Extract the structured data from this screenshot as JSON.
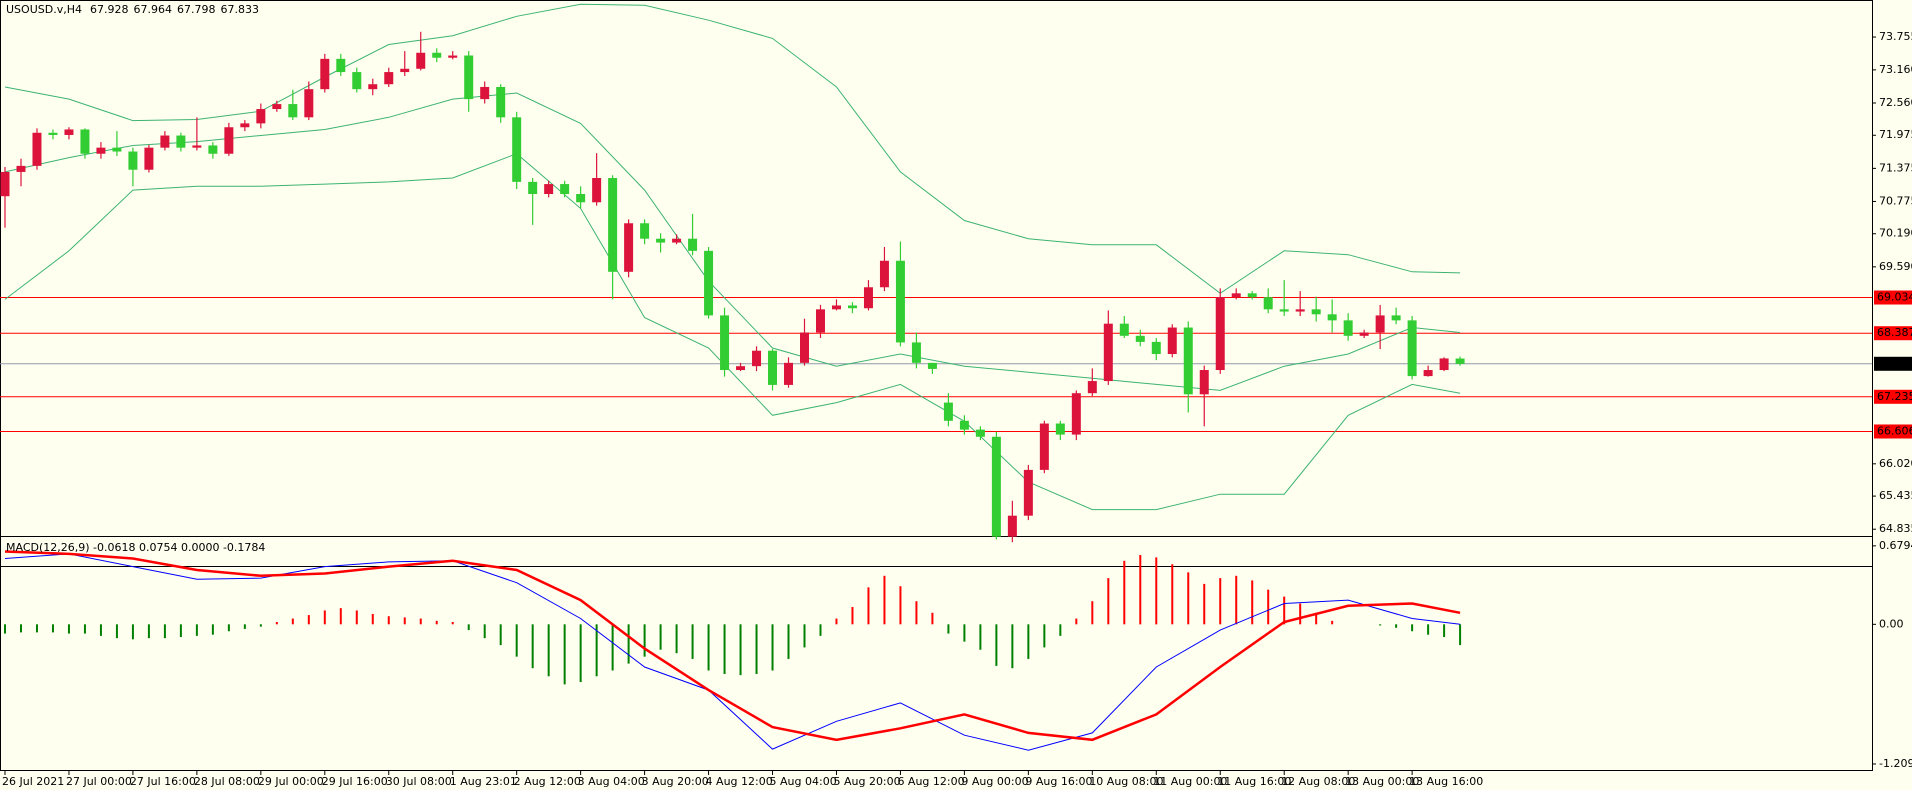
{
  "chart_data": {
    "type": "candlestick",
    "title": "USOUSD.v,H4",
    "candles": {
      "open": [
        70.87,
        71.31,
        71.42,
        72.02,
        71.98,
        72.08,
        71.64,
        71.75,
        71.68,
        71.35,
        71.75,
        71.97,
        71.75,
        71.79,
        71.64,
        72.12,
        72.19,
        72.45,
        72.54,
        72.3,
        72.81,
        73.36,
        73.12,
        72.81,
        72.9,
        73.12,
        73.18,
        73.47,
        73.38,
        73.42,
        72.63,
        72.85,
        72.3,
        71.13,
        70.91,
        71.09,
        70.91,
        70.76,
        71.2,
        69.5,
        70.38,
        70.1,
        70.03,
        70.1,
        69.88,
        68.71,
        67.72,
        67.79,
        68.07,
        67.45,
        67.85,
        68.4,
        68.82,
        68.89,
        68.84,
        69.22,
        69.7,
        68.22,
        67.85,
        67.13,
        66.8,
        66.64,
        66.51,
        64.7,
        65.08,
        65.91,
        66.75,
        66.55,
        67.3,
        67.52,
        68.56,
        68.34,
        68.23,
        68.01,
        68.49,
        67.28,
        67.72,
        69.04,
        69.11,
        69.04,
        68.82,
        68.78,
        68.82,
        68.73,
        68.62,
        68.34,
        68.4,
        68.71,
        68.62,
        67.61,
        67.72,
        67.928
      ],
      "high": [
        71.4,
        71.55,
        72.1,
        72.08,
        72.12,
        72.1,
        71.85,
        72.05,
        71.75,
        71.8,
        72.05,
        72.02,
        72.3,
        71.85,
        72.2,
        72.25,
        72.55,
        72.6,
        72.8,
        72.95,
        73.45,
        73.45,
        73.2,
        73.0,
        73.2,
        73.5,
        73.85,
        73.55,
        73.5,
        73.5,
        72.95,
        72.9,
        72.4,
        71.2,
        71.15,
        71.15,
        71.05,
        71.65,
        71.25,
        70.45,
        70.45,
        70.2,
        70.18,
        70.55,
        69.95,
        68.85,
        67.85,
        68.15,
        68.1,
        67.95,
        68.65,
        68.9,
        69.0,
        68.95,
        69.35,
        69.95,
        70.05,
        68.4,
        67.85,
        67.3,
        66.9,
        66.7,
        66.6,
        65.35,
        66.0,
        66.8,
        66.8,
        67.35,
        67.75,
        68.8,
        68.7,
        68.45,
        68.3,
        68.55,
        68.6,
        67.8,
        69.2,
        69.2,
        69.15,
        69.2,
        69.35,
        69.15,
        69.05,
        69.0,
        68.75,
        68.45,
        68.9,
        68.85,
        68.7,
        67.8,
        67.95,
        67.964
      ],
      "low": [
        70.3,
        71.05,
        71.35,
        71.9,
        71.9,
        71.55,
        71.55,
        71.6,
        71.05,
        71.3,
        71.7,
        71.68,
        71.7,
        71.55,
        71.6,
        72.05,
        72.1,
        72.4,
        72.25,
        72.25,
        72.75,
        73.05,
        72.75,
        72.7,
        72.85,
        73.05,
        73.15,
        73.3,
        73.35,
        72.4,
        72.55,
        72.2,
        71.0,
        70.35,
        70.85,
        70.85,
        70.65,
        70.7,
        69.0,
        69.4,
        70.0,
        69.85,
        70.0,
        69.8,
        68.65,
        67.6,
        67.7,
        67.7,
        67.35,
        67.4,
        67.8,
        68.3,
        68.8,
        68.75,
        68.8,
        69.15,
        68.15,
        67.75,
        67.65,
        66.7,
        66.55,
        66.45,
        64.65,
        64.6,
        65.0,
        65.85,
        66.45,
        66.45,
        67.25,
        67.45,
        68.3,
        68.15,
        67.9,
        67.95,
        66.95,
        66.7,
        67.65,
        69.0,
        69.0,
        68.75,
        68.7,
        68.7,
        68.6,
        68.4,
        68.25,
        68.3,
        68.1,
        68.55,
        67.55,
        67.6,
        67.7,
        67.798
      ],
      "close": [
        71.31,
        71.42,
        72.02,
        71.98,
        72.08,
        71.64,
        71.75,
        71.68,
        71.35,
        71.75,
        71.97,
        71.75,
        71.79,
        71.64,
        72.12,
        72.19,
        72.45,
        72.54,
        72.3,
        72.81,
        73.36,
        73.12,
        72.81,
        72.9,
        73.12,
        73.18,
        73.47,
        73.38,
        73.42,
        72.63,
        72.85,
        72.3,
        71.13,
        70.91,
        71.09,
        70.91,
        70.76,
        71.2,
        69.5,
        70.38,
        70.1,
        70.03,
        70.1,
        69.88,
        68.71,
        67.72,
        67.79,
        68.07,
        67.45,
        67.85,
        68.4,
        68.82,
        68.89,
        68.84,
        69.22,
        69.7,
        68.22,
        67.85,
        67.74,
        66.8,
        66.64,
        66.51,
        64.7,
        65.08,
        65.91,
        66.75,
        66.55,
        67.3,
        67.52,
        68.56,
        68.34,
        68.23,
        68.01,
        68.49,
        67.28,
        67.72,
        69.04,
        69.11,
        69.04,
        68.82,
        68.78,
        68.82,
        68.73,
        68.62,
        68.34,
        68.4,
        68.71,
        68.62,
        67.61,
        67.72,
        67.93,
        67.833
      ]
    },
    "time_labels": [
      "26 Jul 2021",
      "27 Jul 00:00",
      "27 Jul 16:00",
      "28 Jul 08:00",
      "29 Jul 00:00",
      "29 Jul 16:00",
      "30 Jul 08:00",
      "1 Aug 23:01",
      "2 Aug 12:00",
      "3 Aug 04:00",
      "3 Aug 20:00",
      "4 Aug 12:00",
      "5 Aug 04:00",
      "5 Aug 20:00",
      "6 Aug 12:00",
      "9 Aug 00:00",
      "9 Aug 16:00",
      "10 Aug 08:00",
      "11 Aug 00:00",
      "11 Aug 16:00",
      "12 Aug 08:00",
      "13 Aug 00:00",
      "13 Aug 16:00"
    ],
    "line_x": [
      0,
      4,
      8,
      12,
      16,
      20,
      24,
      28,
      32,
      36,
      40,
      44,
      48,
      52,
      56,
      60,
      64,
      68,
      72,
      76,
      80,
      84,
      88,
      91
    ],
    "bands": {
      "upper": [
        72.85,
        72.63,
        72.24,
        72.26,
        72.41,
        73.03,
        73.62,
        73.78,
        74.13,
        74.35,
        74.33,
        74.06,
        73.73,
        72.85,
        71.31,
        70.43,
        70.1,
        69.99,
        69.99,
        69.11,
        69.88,
        69.81,
        69.5,
        69.48
      ],
      "middle": [
        71.31,
        71.57,
        71.79,
        71.86,
        71.97,
        72.08,
        72.3,
        72.63,
        72.74,
        72.19,
        70.98,
        69.33,
        68.12,
        67.79,
        68.01,
        67.79,
        67.68,
        67.57,
        67.46,
        67.35,
        67.79,
        68.01,
        68.49,
        68.4
      ],
      "lower": [
        69.0,
        69.88,
        70.98,
        71.05,
        71.05,
        71.09,
        71.13,
        71.2,
        71.64,
        70.65,
        68.67,
        68.12,
        66.9,
        67.13,
        67.46,
        66.79,
        65.69,
        65.19,
        65.19,
        65.47,
        65.47,
        66.9,
        67.46,
        67.3
      ]
    },
    "levels": [
      69.034,
      68.387,
      67.235,
      66.606
    ],
    "bid": 67.833,
    "ylim": [
      64.15,
      74.39
    ],
    "yticks": [
      73.755,
      {
        "value": 73.16,
        "label": "73.160"
      },
      {
        "value": 72.56,
        "label": "72.560"
      },
      71.975,
      71.375,
      70.775,
      {
        "value": 70.19,
        "label": "70.190"
      },
      {
        "value": 69.59,
        "label": "69.590"
      },
      {
        "value": 66.02,
        "label": "66.020"
      },
      65.435,
      64.835
    ],
    "macd": {
      "title": "MACD(12,26,9) -0.0618 0.0754 0.0000 -0.1784",
      "histogram": [
        -0.08,
        -0.07,
        -0.07,
        -0.07,
        -0.08,
        -0.08,
        -0.1,
        -0.12,
        -0.13,
        -0.12,
        -0.12,
        -0.11,
        -0.1,
        -0.09,
        -0.06,
        -0.04,
        -0.02,
        0.02,
        0.05,
        0.08,
        0.12,
        0.14,
        0.12,
        0.09,
        0.07,
        0.06,
        0.05,
        0.03,
        0.02,
        -0.05,
        -0.12,
        -0.18,
        -0.28,
        -0.38,
        -0.45,
        -0.52,
        -0.5,
        -0.45,
        -0.4,
        -0.34,
        -0.28,
        -0.22,
        -0.25,
        -0.3,
        -0.4,
        -0.43,
        -0.44,
        -0.43,
        -0.4,
        -0.3,
        -0.2,
        -0.1,
        0.05,
        0.15,
        0.32,
        0.42,
        0.33,
        0.2,
        0.1,
        -0.08,
        -0.15,
        -0.22,
        -0.36,
        -0.38,
        -0.3,
        -0.2,
        -0.1,
        0.05,
        0.2,
        0.4,
        0.55,
        0.6,
        0.58,
        0.52,
        0.45,
        0.35,
        0.4,
        0.42,
        0.38,
        0.3,
        0.24,
        0.18,
        0.1,
        0.03,
        0.0,
        0.0,
        -0.01,
        -0.03,
        -0.06,
        -0.09,
        -0.11,
        -0.18
      ],
      "main": [
        0.57,
        0.61,
        0.5,
        0.39,
        0.4,
        0.5,
        0.54,
        0.55,
        0.36,
        0.05,
        -0.37,
        -0.57,
        -1.08,
        -0.84,
        -0.68,
        -0.96,
        -1.09,
        -0.94,
        -0.37,
        -0.05,
        0.18,
        0.21,
        0.05,
        0.0
      ],
      "signal": [
        0.63,
        0.61,
        0.57,
        0.47,
        0.42,
        0.44,
        0.5,
        0.55,
        0.47,
        0.21,
        -0.21,
        -0.57,
        -0.89,
        -1.0,
        -0.9,
        -0.78,
        -0.94,
        -1.0,
        -0.78,
        -0.37,
        0.02,
        0.16,
        0.18,
        0.1
      ],
      "ylim": [
        -1.27,
        0.73
      ],
      "yticks": [
        0.6794,
        {
          "value": 0,
          "label": "0.00"
        },
        -1.2091
      ]
    },
    "colors": {
      "background": "#fffff0",
      "bull": "#dc143c",
      "bear": "#32cd32",
      "bands": "#3cb371",
      "level": "#ff0000",
      "bid": "#8f9ba8",
      "macd_main": "#0000ff",
      "macd_signal": "#ff0000",
      "hist_up": "#ff0000",
      "hist_down": "#008000"
    }
  }
}
